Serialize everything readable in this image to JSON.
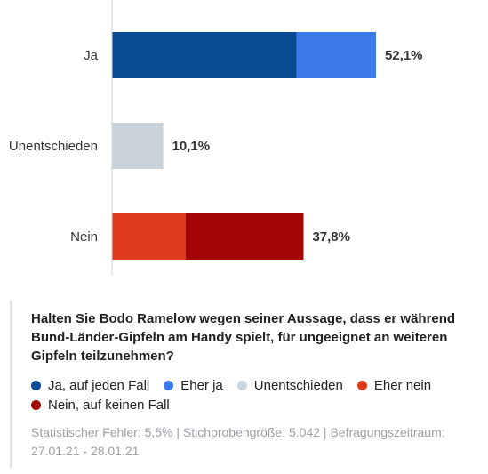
{
  "chart_data": {
    "type": "bar",
    "orientation": "horizontal",
    "stacked": true,
    "categories": [
      "Ja",
      "Unentschieden",
      "Nein"
    ],
    "totals_labels": [
      "52,1%",
      "10,1%",
      "37,8%"
    ],
    "totals": [
      52.1,
      10.1,
      37.8
    ],
    "series": [
      {
        "name": "Ja, auf jeden Fall",
        "color": "#0a4c94",
        "values": [
          36.4,
          0,
          0
        ]
      },
      {
        "name": "Eher ja",
        "color": "#3b79e8",
        "values": [
          15.7,
          0,
          0
        ]
      },
      {
        "name": "Unentschieden",
        "color": "#c9d3dc",
        "values": [
          0,
          10.1,
          0
        ]
      },
      {
        "name": "Eher nein",
        "color": "#e03a1e",
        "values": [
          0,
          0,
          14.5
        ]
      },
      {
        "name": "Nein, auf keinen Fall",
        "color": "#a50404",
        "values": [
          0,
          0,
          23.3
        ]
      }
    ],
    "xlim": [
      0,
      100
    ],
    "grid": false,
    "legend_position": "bottom"
  },
  "panel": {
    "question": "Halten Sie Bodo Ramelow wegen seiner Aussage, dass er während Bund-Länder-Gipfeln am Handy spielt, für ungeeignet an weiteren Gipfeln teilzunehmen?",
    "footer": "Statistischer Fehler: 5,5% | Stichprobengröße: 5.042 | Befragungszeitraum: 27.01.21 - 28.01.21"
  }
}
